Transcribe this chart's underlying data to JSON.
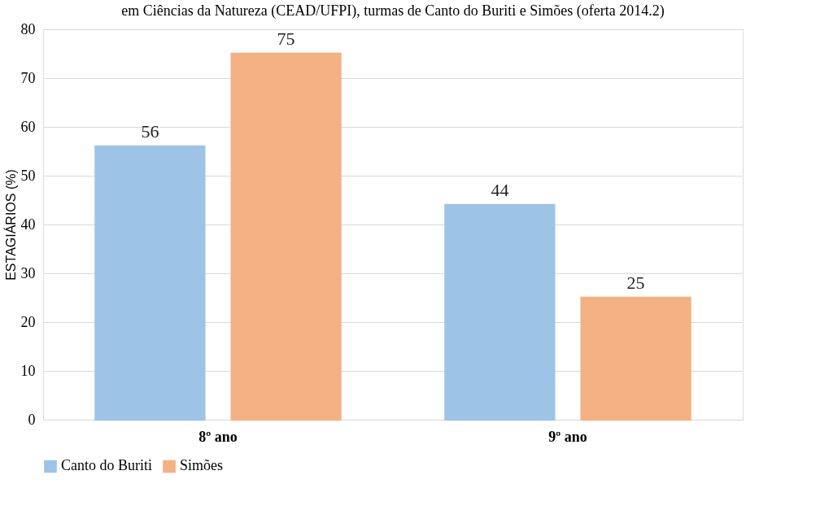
{
  "chart_data": {
    "type": "bar",
    "title": "em Ciências da Natureza (CEAD/UFPI), turmas de Canto do Buriti e Simões (oferta 2014.2)",
    "ylabel": "ESTAGIÁRIOS (%)",
    "categories": [
      "8º ano",
      "9º ano"
    ],
    "series": [
      {
        "name": "Canto do Buriti",
        "color": "#9dc3e6",
        "values": [
          56,
          44
        ]
      },
      {
        "name": "Simões",
        "color": "#f4b183",
        "values": [
          75,
          25
        ]
      }
    ],
    "ylim": [
      0,
      80
    ],
    "yticks": [
      0,
      10,
      20,
      30,
      40,
      50,
      60,
      70,
      80
    ],
    "grid": "y",
    "legend": "bottom",
    "data_labels": true
  }
}
